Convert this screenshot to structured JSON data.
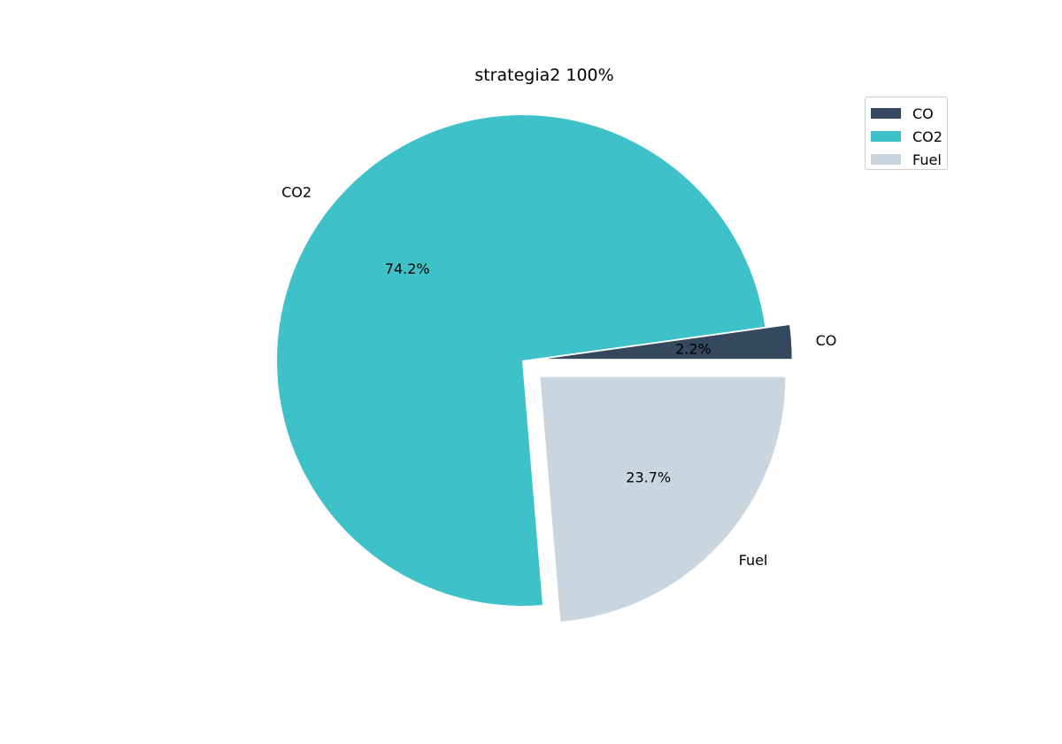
{
  "chart_data": {
    "type": "pie",
    "title": "strategia2 100%",
    "slices": [
      {
        "label": "CO",
        "percent": 2.2,
        "pct_text": "2.2%",
        "color": "#34495e",
        "exploded": true
      },
      {
        "label": "CO2",
        "percent": 74.2,
        "pct_text": "74.2%",
        "color": "#3ec1c9",
        "exploded": false
      },
      {
        "label": "Fuel",
        "percent": 23.7,
        "pct_text": "23.7%",
        "color": "#cad6df",
        "exploded": true
      }
    ],
    "legend": {
      "placement": "top-right",
      "entries": [
        "CO",
        "CO2",
        "Fuel"
      ]
    }
  }
}
